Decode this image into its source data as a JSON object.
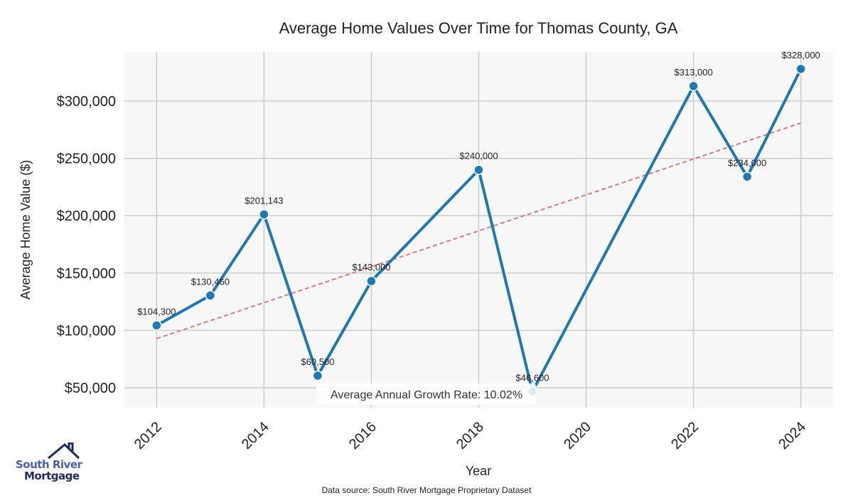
{
  "chart_data": {
    "type": "line",
    "title": "Average Home Values Over Time for Thomas County, GA",
    "xlabel": "Year",
    "ylabel": "Average Home Value ($)",
    "x": [
      2012,
      2013,
      2014,
      2015,
      2016,
      2018,
      2019,
      2022,
      2023,
      2024
    ],
    "series": [
      {
        "name": "Average Home Value",
        "values": [
          104300,
          130460,
          201143,
          60500,
          143000,
          240000,
          46600,
          313000,
          234000,
          328000
        ],
        "color": "#1f77b4"
      }
    ],
    "data_labels": [
      "$104,300",
      "$130,460",
      "$201,143",
      "$60,500",
      "$143,000",
      "$240,000",
      "$46,600",
      "$313,000",
      "$234,000",
      "$328,000"
    ],
    "trend_line": {
      "x": [
        2012,
        2024
      ],
      "y": [
        92800,
        280800
      ],
      "color": "#d9797d",
      "style": "dashed"
    },
    "xlim": [
      2011.4,
      2024.6
    ],
    "ylim": [
      32600,
      342800
    ],
    "xticks": [
      2012,
      2014,
      2016,
      2018,
      2020,
      2022,
      2024
    ],
    "yticks": [
      50000,
      100000,
      150000,
      200000,
      250000,
      300000
    ],
    "ytick_labels": [
      "$50,000",
      "$100,000",
      "$150,000",
      "$200,000",
      "$250,000",
      "$300,000"
    ],
    "grid": true,
    "annotation": "Average Annual Growth Rate: 10.02%",
    "footnote": "Data source: South River Mortgage Proprietary Dataset"
  },
  "logo": {
    "line1": "South River",
    "line2": "Mortgage"
  }
}
